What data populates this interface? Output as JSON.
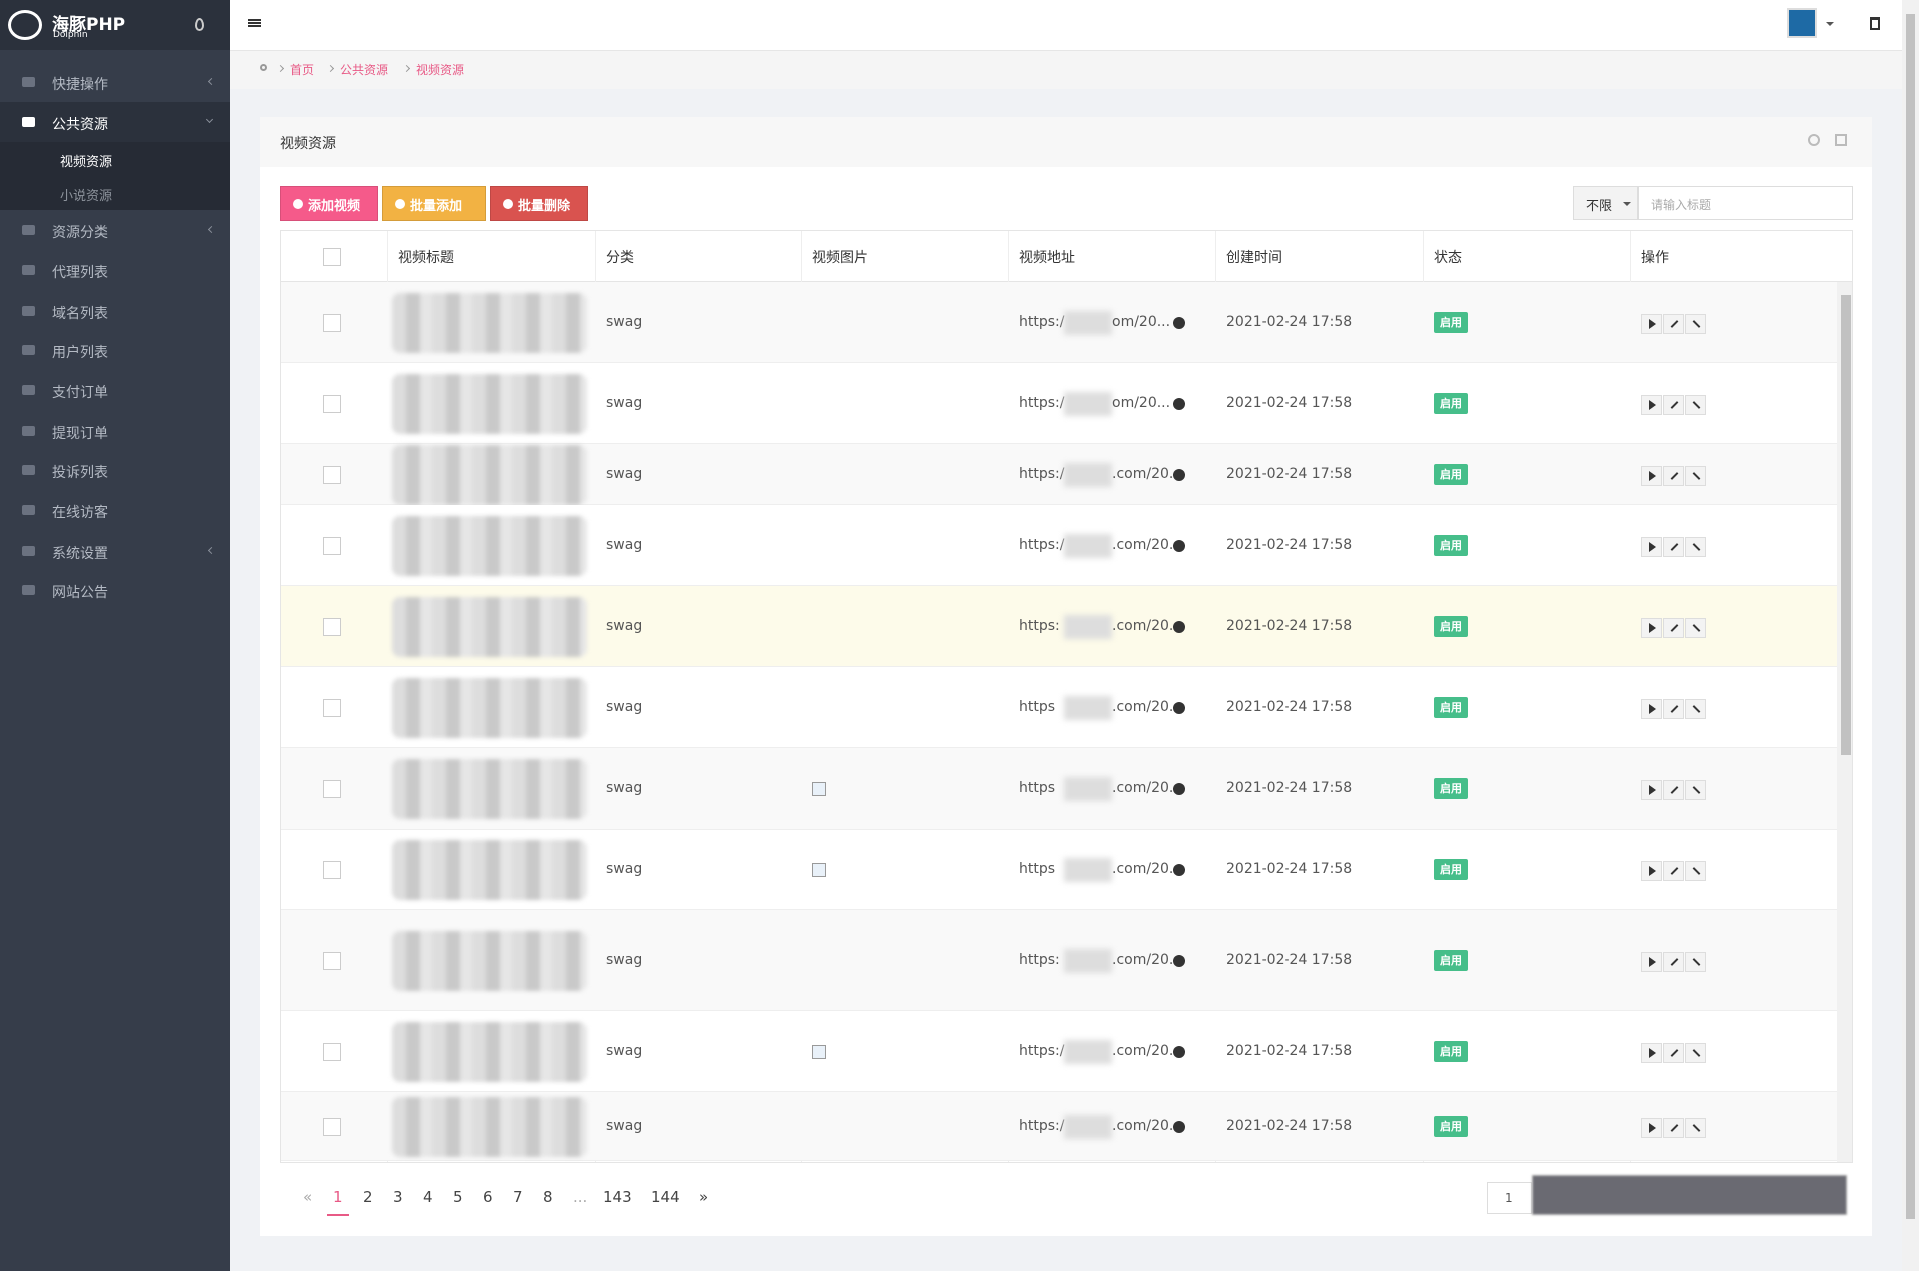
{
  "sidebar": {
    "logo": "海豚PHP",
    "logo_sub": "Dolphin",
    "menu": [
      {
        "label": "快捷操作",
        "arrow": "left"
      },
      {
        "label": "公共资源",
        "arrow": "down",
        "children": [
          "视频资源",
          "小说资源"
        ]
      },
      {
        "label": "资源分类",
        "arrow": "left"
      },
      {
        "label": "代理列表"
      },
      {
        "label": "域名列表"
      },
      {
        "label": "用户列表"
      },
      {
        "label": "支付订单"
      },
      {
        "label": "提现订单"
      },
      {
        "label": "投诉列表"
      },
      {
        "label": "在线访客"
      },
      {
        "label": "系统设置",
        "arrow": "left"
      },
      {
        "label": "网站公告"
      }
    ]
  },
  "breadcrumb": [
    "首页",
    "公共资源",
    "视频资源"
  ],
  "panel": {
    "title": "视频资源",
    "buttons": [
      "添加视频",
      "批量添加",
      "批量删除"
    ],
    "filter": "不限",
    "search_placeholder": "请输入标题"
  },
  "table": {
    "columns": [
      "视频标题",
      "分类",
      "视频图片",
      "视频地址",
      "创建时间",
      "状态",
      "操作"
    ],
    "rows": [
      {
        "category": "swag",
        "has_image": false,
        "url_start": "https:/",
        "url_end": "om/20...",
        "created": "2021-02-24 17:58",
        "status": "启用"
      },
      {
        "category": "swag",
        "has_image": false,
        "url_start": "https:/",
        "url_end": "om/20...",
        "created": "2021-02-24 17:58",
        "status": "启用"
      },
      {
        "category": "swag",
        "has_image": false,
        "url_start": "https:/",
        "url_end": ".com/20...",
        "created": "2021-02-24 17:58",
        "status": "启用"
      },
      {
        "category": "swag",
        "has_image": false,
        "url_start": "https:/",
        "url_end": ".com/20...",
        "created": "2021-02-24 17:58",
        "status": "启用"
      },
      {
        "category": "swag",
        "has_image": false,
        "url_start": "https:",
        "url_end": ".com/20...",
        "created": "2021-02-24 17:58",
        "status": "启用"
      },
      {
        "category": "swag",
        "has_image": false,
        "url_start": "https",
        "url_end": ".com/20...",
        "created": "2021-02-24 17:58",
        "status": "启用"
      },
      {
        "category": "swag",
        "has_image": true,
        "url_start": "https",
        "url_end": ".com/20...",
        "created": "2021-02-24 17:58",
        "status": "启用"
      },
      {
        "category": "swag",
        "has_image": true,
        "url_start": "https",
        "url_end": ".com/20...",
        "created": "2021-02-24 17:58",
        "status": "启用"
      },
      {
        "category": "swag",
        "has_image": false,
        "url_start": "https:",
        "url_end": ".com/20...",
        "created": "2021-02-24 17:58",
        "status": "启用"
      },
      {
        "category": "swag",
        "has_image": true,
        "url_start": "https:/",
        "url_end": ".com/20...",
        "created": "2021-02-24 17:58",
        "status": "启用"
      },
      {
        "category": "swag",
        "has_image": false,
        "url_start": "https:/",
        "url_end": ".com/20...",
        "created": "2021-02-24 17:58",
        "status": "启用"
      }
    ]
  },
  "pagination": {
    "pages": [
      "«",
      "1",
      "2",
      "3",
      "4",
      "5",
      "6",
      "7",
      "8",
      "...",
      "143",
      "144",
      "»"
    ],
    "current": 1,
    "jump": "1"
  }
}
